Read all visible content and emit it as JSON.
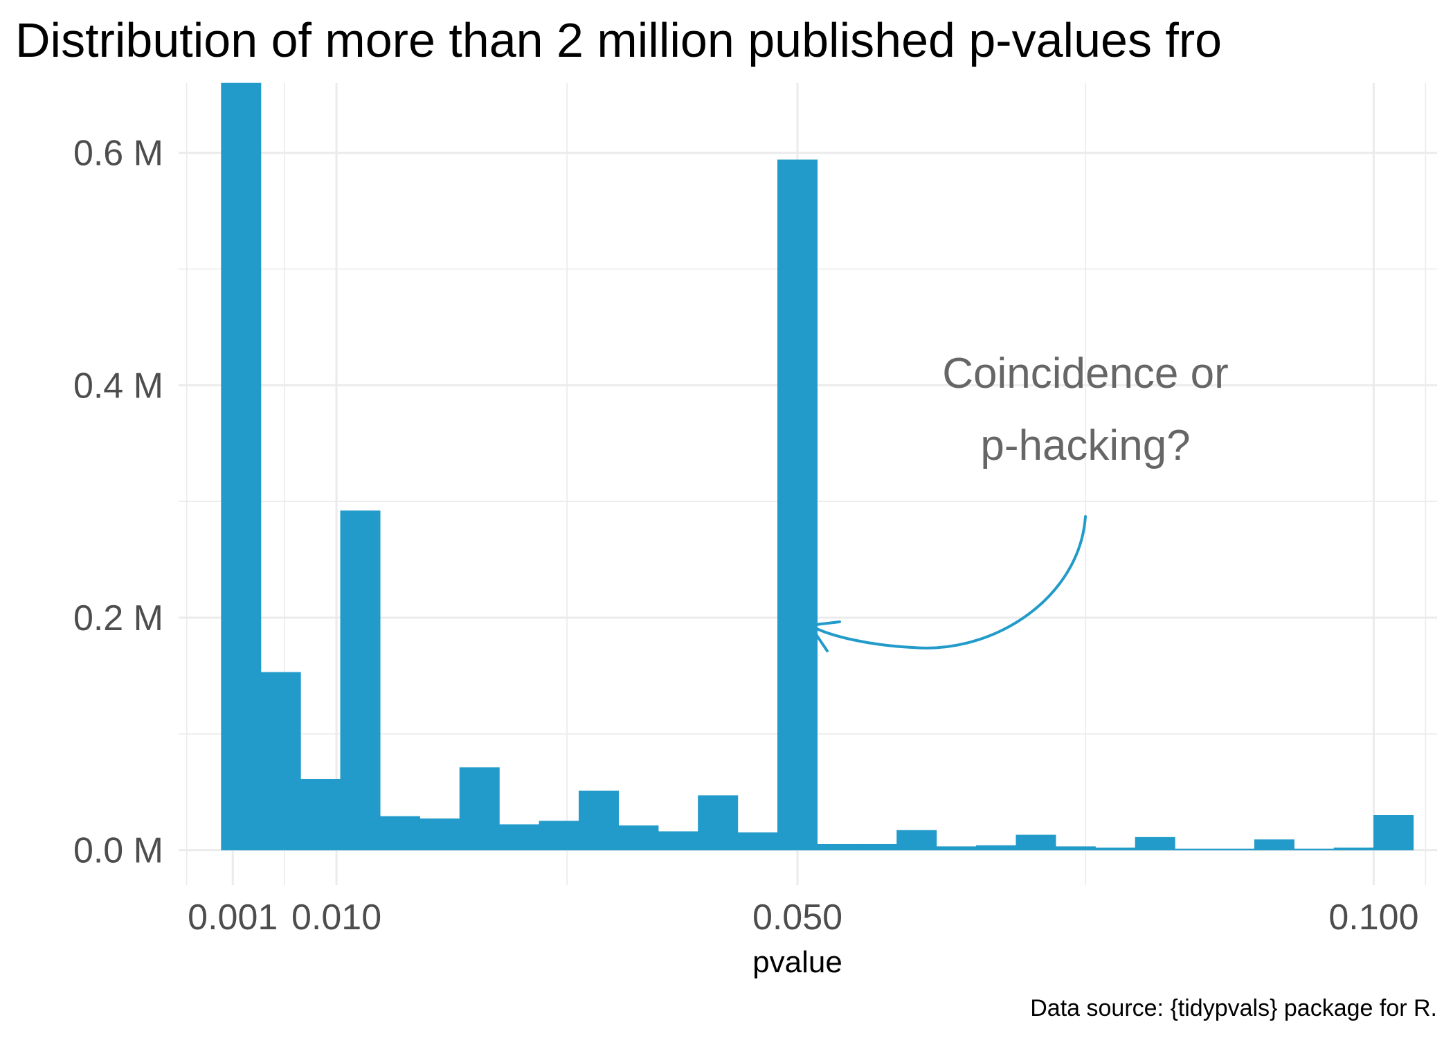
{
  "chart_data": {
    "type": "bar",
    "title": "Distribution of more than 2 million published p-values fro",
    "xlabel": "pvalue",
    "ylabel": "",
    "caption": "Data source: {tidypvals} package for R.",
    "annotation": [
      "Coincidence or",
      "p-hacking?"
    ],
    "bar_color": "#229bca",
    "annotation_color": "#666666",
    "arrow_color": "#229bca",
    "grid": true,
    "xlim": [
      -0.0037,
      0.1055
    ],
    "ylim": [
      -0.03,
      0.66
    ],
    "x_ticks": [
      {
        "value": 0.001,
        "label": "0.001"
      },
      {
        "value": 0.01,
        "label": "0.010"
      },
      {
        "value": 0.05,
        "label": "0.050"
      },
      {
        "value": 0.1,
        "label": "0.100"
      }
    ],
    "y_ticks": [
      {
        "value": 0,
        "label": "0.0 M"
      },
      {
        "value": 0.2,
        "label": "0.2 M"
      },
      {
        "value": 0.4,
        "label": "0.4 M"
      },
      {
        "value": 0.6,
        "label": "0.6 M"
      }
    ],
    "bin_width": 0.003448,
    "bins": [
      {
        "x0": 0.0,
        "value": 0.66
      },
      {
        "x0": 0.003448,
        "value": 0.153
      },
      {
        "x0": 0.006897,
        "value": 0.061
      },
      {
        "x0": 0.010345,
        "value": 0.292
      },
      {
        "x0": 0.013793,
        "value": 0.029
      },
      {
        "x0": 0.017241,
        "value": 0.027
      },
      {
        "x0": 0.02069,
        "value": 0.071
      },
      {
        "x0": 0.024138,
        "value": 0.022
      },
      {
        "x0": 0.027586,
        "value": 0.025
      },
      {
        "x0": 0.031034,
        "value": 0.051
      },
      {
        "x0": 0.034483,
        "value": 0.021
      },
      {
        "x0": 0.037931,
        "value": 0.016
      },
      {
        "x0": 0.041379,
        "value": 0.047
      },
      {
        "x0": 0.044828,
        "value": 0.015
      },
      {
        "x0": 0.048276,
        "value": 0.594
      },
      {
        "x0": 0.051724,
        "value": 0.005
      },
      {
        "x0": 0.055172,
        "value": 0.005
      },
      {
        "x0": 0.058621,
        "value": 0.017
      },
      {
        "x0": 0.062069,
        "value": 0.003
      },
      {
        "x0": 0.065517,
        "value": 0.004
      },
      {
        "x0": 0.068966,
        "value": 0.013
      },
      {
        "x0": 0.072414,
        "value": 0.003
      },
      {
        "x0": 0.075862,
        "value": 0.002
      },
      {
        "x0": 0.07931,
        "value": 0.011
      },
      {
        "x0": 0.082759,
        "value": 0.001
      },
      {
        "x0": 0.086207,
        "value": 0.001
      },
      {
        "x0": 0.089655,
        "value": 0.009
      },
      {
        "x0": 0.093103,
        "value": 0.001
      },
      {
        "x0": 0.096552,
        "value": 0.002
      },
      {
        "x0": 0.1,
        "value": 0.03
      }
    ]
  }
}
